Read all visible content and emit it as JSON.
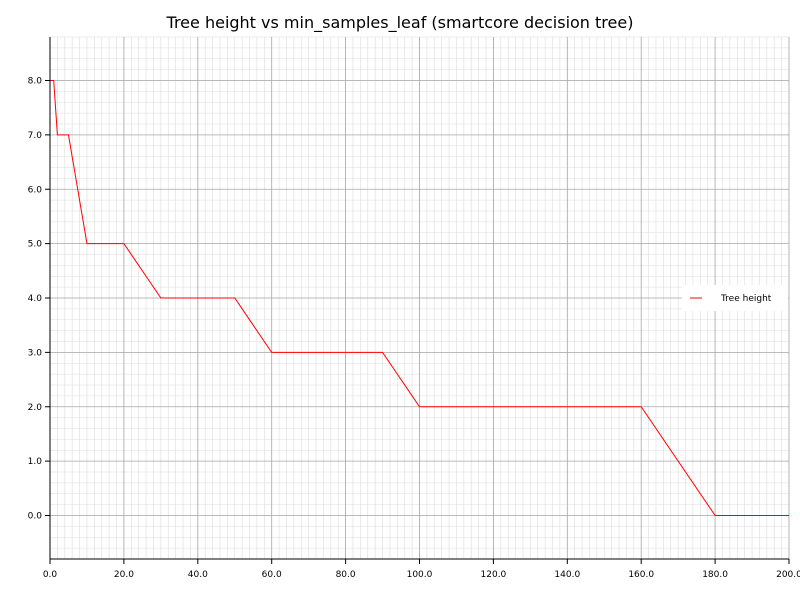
{
  "chart_data": {
    "type": "line",
    "title": "Tree height vs min_samples_leaf (smartcore decision tree)",
    "xlabel": "",
    "ylabel": "",
    "xlim": [
      0,
      200
    ],
    "ylim": [
      -0.8,
      8.8
    ],
    "x_ticks": [
      "0.0",
      "20.0",
      "40.0",
      "60.0",
      "80.0",
      "100.0",
      "120.0",
      "140.0",
      "160.0",
      "180.0",
      "200.0"
    ],
    "y_ticks": [
      "0.0",
      "1.0",
      "2.0",
      "3.0",
      "4.0",
      "5.0",
      "6.0",
      "7.0",
      "8.0"
    ],
    "grid": true,
    "legend_position": "right",
    "series": [
      {
        "name": "Tree height",
        "color": "#ff0000",
        "x": [
          0,
          1,
          2,
          5,
          10,
          20,
          30,
          50,
          60,
          90,
          100,
          160,
          180,
          200
        ],
        "y": [
          8,
          8,
          7,
          7,
          5,
          5,
          4,
          4,
          3,
          3,
          2,
          2,
          0,
          0
        ]
      }
    ]
  }
}
